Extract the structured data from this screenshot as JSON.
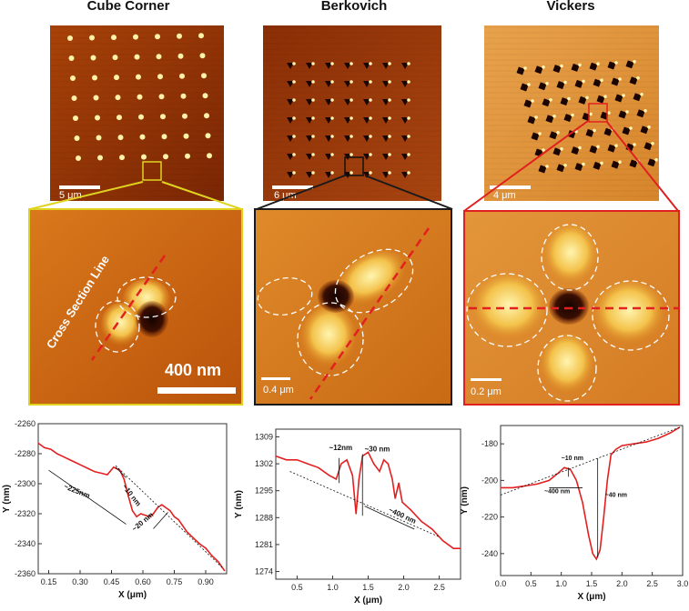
{
  "columns": [
    {
      "title": "Cube Corner",
      "overview_scale": "5 μm",
      "zoom_scale": "400 nm",
      "zoom_label": "Cross Section Line",
      "frame_color": "#e0d320"
    },
    {
      "title": "Berkovich",
      "overview_scale": "6 μm",
      "zoom_scale": "0.4 μm",
      "frame_color": "#1a1a1a"
    },
    {
      "title": "Vickers",
      "overview_scale": "4 μm",
      "zoom_scale": "0.2 μm",
      "frame_color": "#e02020"
    }
  ],
  "colors": {
    "line": "#e32020",
    "dashed": "#e32020",
    "afm_dark": "#5a1e05",
    "afm_mid": "#c45a0e",
    "afm_light": "#f6d070"
  },
  "chart_data": [
    {
      "type": "line",
      "xlabel": "X (μm)",
      "ylabel": "Y (nm)",
      "xlim": [
        0.1,
        1.0
      ],
      "ylim": [
        -2360,
        -2260
      ],
      "xticks": [
        "0.15",
        "0.30",
        "0.45",
        "0.60",
        "0.75",
        "0.90"
      ],
      "yticks": [
        "-2260",
        "-2280",
        "-2300",
        "-2320",
        "-2340",
        "-2360"
      ],
      "annotations": [
        "~10 nm",
        "~225nm",
        "~20 nm"
      ],
      "series": [
        {
          "name": "Cube Corner profile",
          "x": [
            0.1,
            0.13,
            0.16,
            0.19,
            0.22,
            0.25,
            0.28,
            0.31,
            0.34,
            0.37,
            0.4,
            0.43,
            0.46,
            0.49,
            0.51,
            0.53,
            0.55,
            0.57,
            0.59,
            0.61,
            0.63,
            0.65,
            0.67,
            0.69,
            0.71,
            0.73,
            0.75,
            0.77,
            0.79,
            0.81,
            0.84,
            0.87,
            0.9,
            0.93,
            0.96,
            0.99
          ],
          "y": [
            -2273,
            -2276,
            -2277,
            -2280,
            -2282,
            -2284,
            -2286,
            -2288,
            -2290,
            -2292,
            -2293,
            -2294,
            -2289,
            -2291,
            -2297,
            -2308,
            -2318,
            -2322,
            -2320,
            -2321,
            -2322,
            -2320,
            -2316,
            -2314,
            -2316,
            -2318,
            -2322,
            -2324,
            -2328,
            -2332,
            -2336,
            -2340,
            -2343,
            -2348,
            -2352,
            -2358
          ]
        }
      ]
    },
    {
      "type": "line",
      "xlabel": "X (μm)",
      "ylabel": "Y (nm)",
      "xlim": [
        0.2,
        2.8
      ],
      "ylim": [
        1272,
        1311
      ],
      "xticks": [
        "0.5",
        "1.0",
        "1.5",
        "2.0",
        "2.5"
      ],
      "yticks": [
        "1309",
        "1302",
        "1295",
        "1288",
        "1281",
        "1274"
      ],
      "annotations": [
        "~12nm",
        "~30 nm",
        "~400 nm"
      ],
      "series": [
        {
          "name": "Berkovich profile",
          "x": [
            0.2,
            0.35,
            0.5,
            0.65,
            0.8,
            0.95,
            1.05,
            1.12,
            1.2,
            1.28,
            1.33,
            1.37,
            1.42,
            1.5,
            1.58,
            1.66,
            1.72,
            1.78,
            1.84,
            1.88,
            1.93,
            1.98,
            2.1,
            2.25,
            2.4,
            2.55,
            2.7,
            2.8
          ],
          "y": [
            1304,
            1303,
            1303,
            1302,
            1301,
            1299,
            1298,
            1302,
            1303,
            1299,
            1289,
            1298,
            1304,
            1305,
            1302,
            1300,
            1303,
            1302,
            1298,
            1293,
            1297,
            1292,
            1290,
            1287,
            1285,
            1282,
            1280,
            1280
          ]
        }
      ]
    },
    {
      "type": "line",
      "xlabel": "X (μm)",
      "ylabel": "Y (nm)",
      "xlim": [
        0.0,
        3.0
      ],
      "ylim": [
        -252,
        -170
      ],
      "xticks": [
        "0.0",
        "0.5",
        "1.0",
        "1.5",
        "2.0",
        "2.5",
        "3.0"
      ],
      "yticks": [
        "-180",
        "-200",
        "-220",
        "-240"
      ],
      "annotations": [
        "~10 nm",
        "~400 nm",
        "~40 nm"
      ],
      "series": [
        {
          "name": "Vickers profile",
          "x": [
            0.0,
            0.2,
            0.4,
            0.6,
            0.8,
            0.95,
            1.05,
            1.15,
            1.25,
            1.35,
            1.45,
            1.52,
            1.58,
            1.64,
            1.7,
            1.76,
            1.82,
            1.9,
            2.0,
            2.2,
            2.4,
            2.6,
            2.8,
            2.95
          ],
          "y": [
            -204,
            -204,
            -203,
            -202,
            -200,
            -196,
            -193,
            -194,
            -200,
            -212,
            -230,
            -240,
            -243,
            -238,
            -220,
            -200,
            -186,
            -183,
            -181,
            -180,
            -179,
            -177,
            -174,
            -171
          ]
        }
      ]
    }
  ]
}
